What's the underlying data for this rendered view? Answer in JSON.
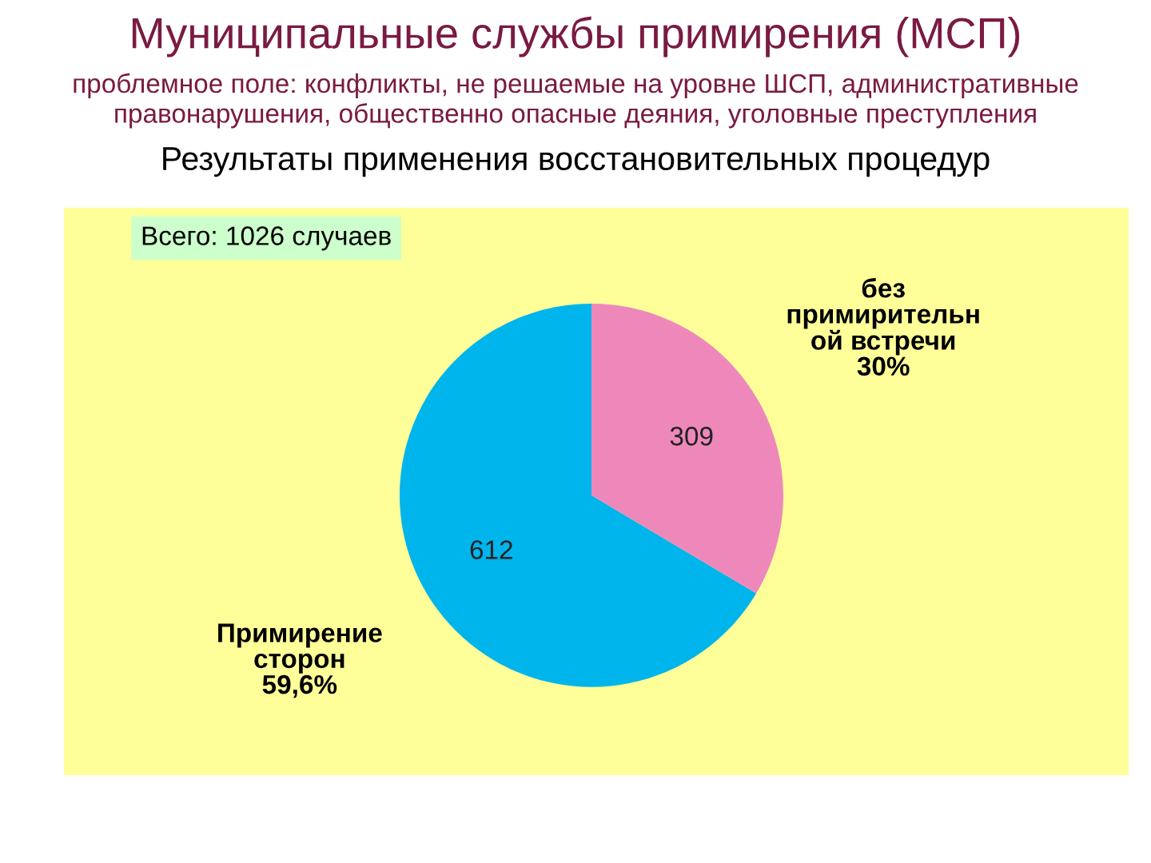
{
  "chart_data": {
    "type": "pie",
    "title": "Муниципальные службы примирения (МСП)",
    "subtitle": "проблемное поле: конфликты, не решаемые на уровне ШСП, административные\nправонарушения, общественно опасные деяния, уголовные преступления",
    "annotations": [
      "Результаты применения восстановительных процедур",
      "Всего: 1026 случаев"
    ],
    "categories": [
      "Примирение\nсторон\n59,6%",
      "без\nпримирительн\nой встречи\n30%"
    ],
    "values": [
      612,
      309
    ],
    "colors": [
      "#00b4ec",
      "#ee88bb"
    ],
    "data_labels": true
  }
}
